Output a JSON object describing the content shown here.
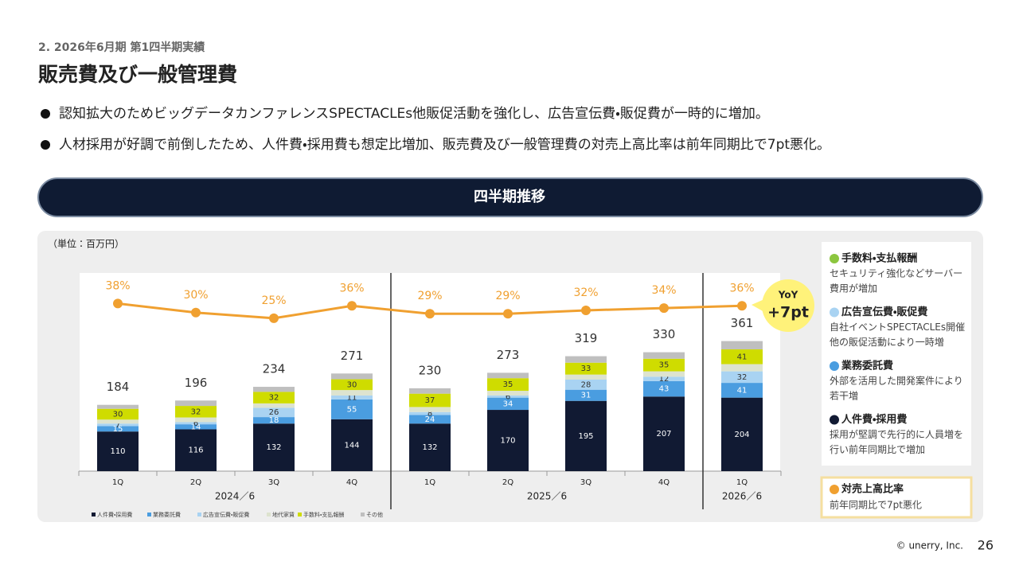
{
  "header": {
    "section": "2. 2026年6月期 第1四半期実績",
    "title": "販売費及び一般管理費"
  },
  "bullets": [
    "認知拡大のためビッグデータカンファレンスSPECTACLEs他販促活動を強化し、広告宣伝費・販促費が一時的に増加。",
    "人材採用が好調で前倒したため、人件費・採用費も想定比増加、販売費及び一般管理費の対売上高比率は前年同期比で7pt悪化。"
  ],
  "banner": "四半期推移",
  "chart_data": {
    "type": "bar",
    "stacked": true,
    "unit": "（単位：百万円）",
    "categories": [
      "1Q",
      "2Q",
      "3Q",
      "4Q",
      "1Q",
      "2Q",
      "3Q",
      "4Q",
      "1Q"
    ],
    "groups": [
      {
        "label": "2024／6",
        "span": 4
      },
      {
        "label": "2025／6",
        "span": 4
      },
      {
        "label": "2026／6",
        "span": 1
      }
    ],
    "ylim": [
      0,
      550
    ],
    "y2lim": [
      -110,
      65
    ],
    "series": [
      {
        "name": "人件費・採用費",
        "color": "#111a33",
        "labels": true,
        "label_color": "#ffffff",
        "values": [
          110,
          116,
          132,
          144,
          132,
          170,
          195,
          207,
          204
        ]
      },
      {
        "name": "業務委託費",
        "color": "#4a9de0",
        "labels": true,
        "label_color": "#ffffff",
        "values": [
          15,
          14,
          18,
          55,
          24,
          34,
          31,
          43,
          41
        ]
      },
      {
        "name": "広告宣伝費・販促費",
        "color": "#a9d3f2",
        "labels": true,
        "label_color": "#333333",
        "values": [
          7,
          6,
          26,
          11,
          8,
          6,
          28,
          12,
          32
        ]
      },
      {
        "name": "地代家賃",
        "color": "#dde3cf",
        "labels": false,
        "values": [
          11,
          13,
          12,
          15,
          14,
          13,
          14,
          15,
          20
        ]
      },
      {
        "name": "手数料・支払報酬",
        "color": "#cfdc00",
        "labels": true,
        "label_color": "#333333",
        "values": [
          30,
          32,
          32,
          30,
          37,
          35,
          33,
          35,
          41
        ]
      },
      {
        "name": "その他",
        "color": "#bfbfbf",
        "labels": false,
        "values": [
          11,
          15,
          14,
          16,
          15,
          15,
          18,
          18,
          23
        ]
      },
      {
        "name": "対売上高比率",
        "type": "line",
        "axis": "y2",
        "color": "#f0a030",
        "values": [
          38,
          30,
          25,
          36,
          29,
          29,
          32,
          34,
          36
        ],
        "value_labels": [
          "38%",
          "30%",
          "25%",
          "36%",
          "29%",
          "29%",
          "32%",
          "34%",
          "36%"
        ]
      }
    ],
    "totals": [
      184,
      196,
      234,
      271,
      230,
      273,
      319,
      330,
      361
    ],
    "callout": {
      "title": "YoY",
      "value": "+7pt"
    }
  },
  "notes": [
    {
      "title": "手数料・支払報酬",
      "color": "#8cc63f",
      "lines": [
        "セキュリティ強化などサーバー",
        "費用が増加"
      ]
    },
    {
      "title": "広告宣伝費・販促費",
      "color": "#a9d3f2",
      "lines": [
        "自社イベントSPECTACLEs開催",
        "他の販促活動により一時増"
      ]
    },
    {
      "title": "業務委託費",
      "color": "#4a9de0",
      "lines": [
        "外部を活用した開発案件により",
        "若干増"
      ]
    },
    {
      "title": "人件費・採用費",
      "color": "#111a33",
      "lines": [
        "採用が堅調で先行的に人員増を",
        "行い前年同期比で増加"
      ]
    }
  ],
  "ratio_note": {
    "title": "対売上高比率",
    "color": "#f0a030",
    "text": "前年同期比で7pt悪化"
  },
  "footer": {
    "copyright": "© unerry, Inc.",
    "page": "26"
  }
}
